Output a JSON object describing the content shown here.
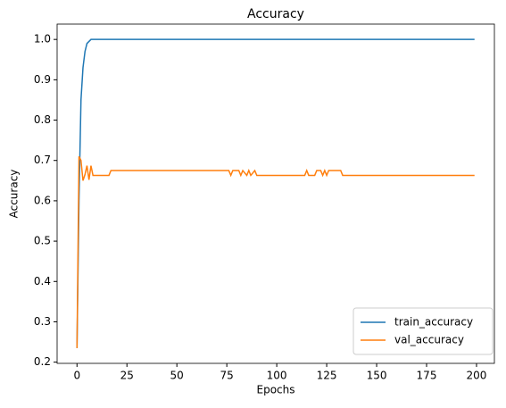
{
  "chart_data": {
    "type": "line",
    "title": "Accuracy",
    "xlabel": "Epochs",
    "ylabel": "Accuracy",
    "x": [
      0,
      1,
      2,
      3,
      4,
      5,
      6,
      7,
      8,
      16,
      17,
      76,
      77,
      78,
      81,
      82,
      83,
      85,
      86,
      87,
      89,
      90,
      114,
      115,
      116,
      119,
      120,
      122,
      123,
      124,
      125,
      126,
      132,
      133,
      199
    ],
    "series": [
      {
        "name": "train_accuracy",
        "color": "#1f77b4",
        "values": [
          0.235,
          0.6,
          0.85,
          0.93,
          0.97,
          0.99,
          0.995,
          1.0,
          1.0,
          1.0,
          1.0,
          1.0,
          1.0,
          1.0,
          1.0,
          1.0,
          1.0,
          1.0,
          1.0,
          1.0,
          1.0,
          1.0,
          1.0,
          1.0,
          1.0,
          1.0,
          1.0,
          1.0,
          1.0,
          1.0,
          1.0,
          1.0,
          1.0,
          1.0,
          1.0
        ]
      },
      {
        "name": "val_accuracy",
        "color": "#ff7f0e",
        "values": [
          0.235,
          0.71,
          0.7,
          0.65,
          0.665,
          0.687,
          0.652,
          0.687,
          0.663,
          0.663,
          0.675,
          0.675,
          0.663,
          0.675,
          0.675,
          0.663,
          0.675,
          0.663,
          0.675,
          0.663,
          0.675,
          0.663,
          0.663,
          0.675,
          0.663,
          0.663,
          0.675,
          0.675,
          0.663,
          0.675,
          0.663,
          0.675,
          0.675,
          0.663,
          0.663
        ]
      }
    ],
    "xlim": [
      -9.95,
      208.95
    ],
    "xticks": [
      0,
      25,
      50,
      75,
      100,
      125,
      150,
      175,
      200
    ],
    "ylim": [
      0.197,
      1.038
    ],
    "yticks": [
      0.2,
      0.3,
      0.4,
      0.5,
      0.6,
      0.7,
      0.8,
      0.9,
      {
        "value": 1,
        "label": "1.0"
      }
    ],
    "legend": "lower right"
  }
}
